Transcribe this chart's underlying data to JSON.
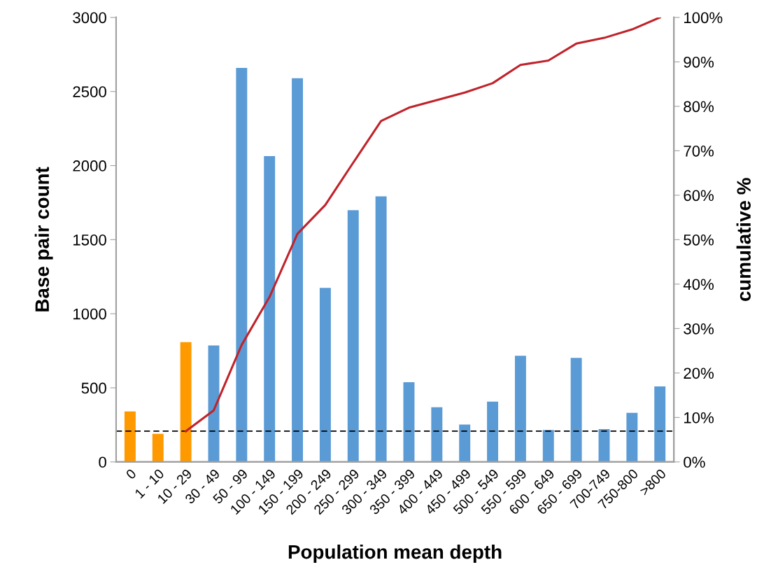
{
  "chart_data": {
    "type": "bar",
    "xlabel": "Population mean depth",
    "ylabel": "Base pair count",
    "y2label": "cumulative %",
    "categories": [
      "0",
      "1 - 10",
      "10 - 29",
      "30 - 49",
      "50 - 99",
      "100 - 149",
      "150 - 199",
      "200 - 249",
      "250 - 299",
      "300 - 349",
      "350 - 399",
      "400 - 449",
      "450 - 499",
      "500 - 549",
      "550 - 599",
      "600 - 649",
      "650 - 699",
      "700-749",
      "750-800",
      ">800"
    ],
    "series": [
      {
        "colors": [
          "#ff9900",
          "#ff9900",
          "#ff9900",
          "#5b9bd5",
          "#5b9bd5",
          "#5b9bd5",
          "#5b9bd5",
          "#5b9bd5",
          "#5b9bd5",
          "#5b9bd5",
          "#5b9bd5",
          "#5b9bd5",
          "#5b9bd5",
          "#5b9bd5",
          "#5b9bd5",
          "#5b9bd5",
          "#5b9bd5",
          "#5b9bd5",
          "#5b9bd5",
          "#5b9bd5"
        ],
        "values": [
          341,
          189,
          809,
          786,
          2659,
          2064,
          2590,
          1175,
          1699,
          1792,
          538,
          369,
          252,
          407,
          716,
          216,
          702,
          221,
          331,
          510
        ]
      },
      {
        "type": "line",
        "axis": "y2",
        "color": "#c0232a",
        "values": [
          null,
          null,
          6.9,
          11.6,
          26.3,
          37.1,
          51.3,
          57.8,
          67.3,
          76.7,
          79.7,
          81.4,
          83.1,
          85.2,
          89.3,
          90.3,
          94.1,
          95.4,
          97.3,
          100
        ]
      }
    ],
    "ylim": [
      0,
      3000
    ],
    "yticks": [
      0,
      500,
      1000,
      1500,
      2000,
      2500,
      3000
    ],
    "y2lim": [
      0,
      100
    ],
    "y2ticks": [
      {
        "value": 0,
        "label": "0%"
      },
      {
        "value": 10,
        "label": "10%"
      },
      {
        "value": 20,
        "label": "20%"
      },
      {
        "value": 30,
        "label": "30%"
      },
      {
        "value": 40,
        "label": "40%"
      },
      {
        "value": 50,
        "label": "50%"
      },
      {
        "value": 60,
        "label": "60%"
      },
      {
        "value": 70,
        "label": "70%"
      },
      {
        "value": 80,
        "label": "80%"
      },
      {
        "value": 90,
        "label": "90%"
      },
      {
        "value": 100,
        "label": "100%"
      }
    ],
    "ref_lines": [
      {
        "axis": "y",
        "value": 208,
        "color": "#000000",
        "line_style": "dashed"
      }
    ],
    "grid": false,
    "legend": false
  }
}
